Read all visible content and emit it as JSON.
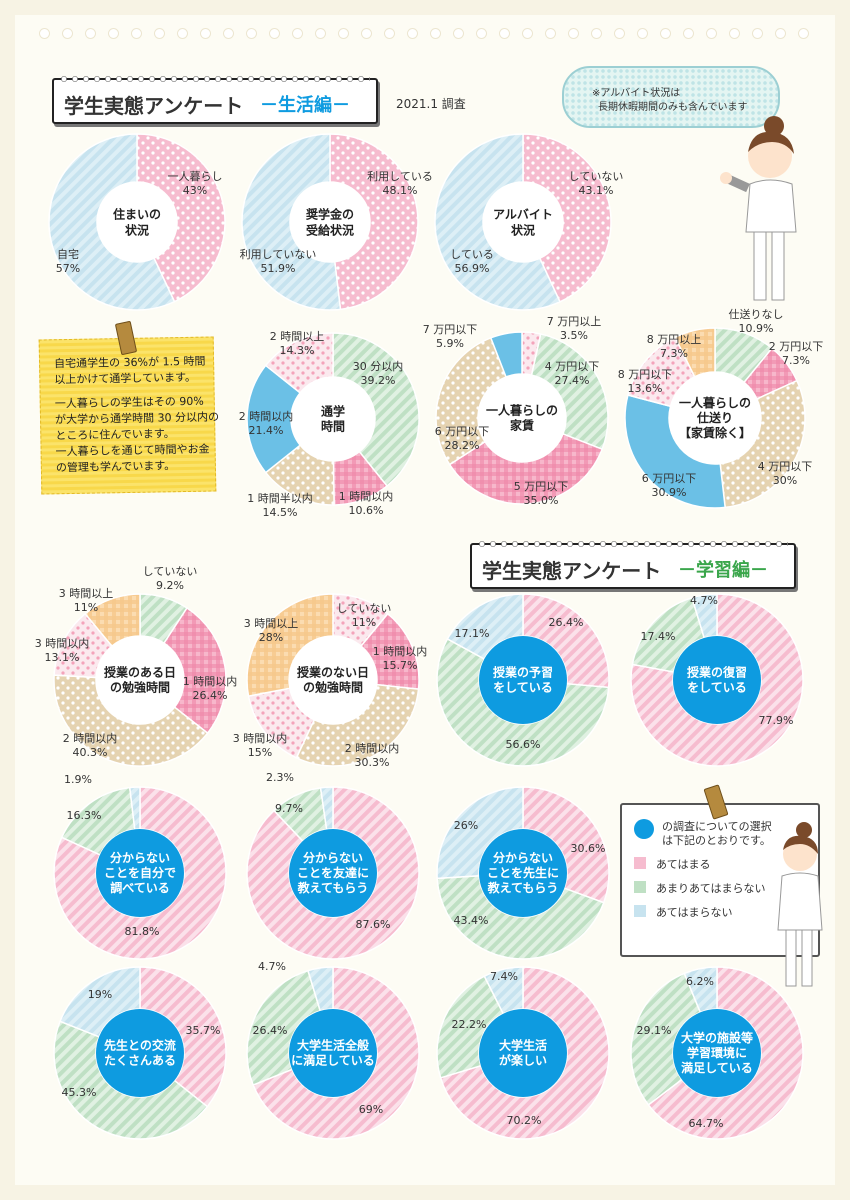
{
  "header_life": {
    "title": "学生実態アンケート",
    "subtitle": "－生活編－",
    "date": "2021.1 調査"
  },
  "header_study": {
    "title": "学生実態アンケート",
    "subtitle": "－学習編－"
  },
  "note": {
    "lines": [
      "自宅通学生の 36%が 1.5 時間",
      "以上かけて通学しています。",
      "一人暮らしの学生はその 90%",
      "が大学から通学時間 30 分以内の",
      "ところに住んでいます。",
      "一人暮らしを通じて時間やお金",
      "の管理も学んでいます。"
    ]
  },
  "bubble": {
    "lines": [
      "※アルバイト状況は",
      "長期休暇期間のみも含んでいます"
    ]
  },
  "legend": {
    "title_lines": [
      "の調査についての選択",
      "は下記のとおりです。"
    ],
    "items": [
      {
        "label": "あてはまる",
        "color": "#f6bccf"
      },
      {
        "label": "あまりあてはまらない",
        "color": "#bfe0c4"
      },
      {
        "label": "あてはまらない",
        "color": "#c7e3ef"
      }
    ]
  },
  "colors": {
    "pink": "#f6bccf",
    "pink_dots": "#f6bccf",
    "blue_stripe": "#c7e3ef",
    "green_stripe": "#bfe0c4",
    "green_dots": "#bfe0c4",
    "beige_dots": "#e5d3b1",
    "pink_check": "#ee87a9",
    "blue_solid": "#6bc0e6",
    "orange_check": "#f6c88c",
    "blue_center": "#0e9be0"
  },
  "chart_data": [
    {
      "type": "pie",
      "id": "c1",
      "center": [
        "住まいの",
        "状況"
      ],
      "slices": [
        {
          "label": [
            "一人暮らし",
            "43%"
          ],
          "value": 43
        },
        {
          "label": [
            "自宅",
            "57%"
          ],
          "value": 57
        }
      ]
    },
    {
      "type": "pie",
      "id": "c2",
      "center": [
        "奨学金の",
        "受給状況"
      ],
      "slices": [
        {
          "label": [
            "利用している",
            "48.1%"
          ],
          "value": 48.1
        },
        {
          "label": [
            "利用していない",
            "51.9%"
          ],
          "value": 51.9
        }
      ]
    },
    {
      "type": "pie",
      "id": "c3",
      "center": [
        "アルバイト",
        "状況"
      ],
      "slices": [
        {
          "label": [
            "していない",
            "43.1%"
          ],
          "value": 43.1
        },
        {
          "label": [
            "している",
            "56.9%"
          ],
          "value": 56.9
        }
      ]
    },
    {
      "type": "pie",
      "id": "c4",
      "center": [
        "通学",
        "時間"
      ],
      "slices": [
        {
          "label": [
            "30 分以内",
            "39.2%"
          ],
          "value": 39.2
        },
        {
          "label": [
            "1 時間以内",
            "10.6%"
          ],
          "value": 10.6
        },
        {
          "label": [
            "1 時間半以内",
            "14.5%"
          ],
          "value": 14.5
        },
        {
          "label": [
            "2 時間以内",
            "21.4%"
          ],
          "value": 21.4
        },
        {
          "label": [
            "2 時間以上",
            "14.3%"
          ],
          "value": 14.3
        }
      ]
    },
    {
      "type": "pie",
      "id": "c5",
      "center": [
        "一人暮らしの",
        "家賃"
      ],
      "slices": [
        {
          "label": [
            "7 万円以上",
            "3.5%"
          ],
          "value": 3.5
        },
        {
          "label": [
            "4 万円以下",
            "27.4%"
          ],
          "value": 27.4
        },
        {
          "label": [
            "5 万円以下",
            "35.0%"
          ],
          "value": 35.0
        },
        {
          "label": [
            "6 万円以下",
            "28.2%"
          ],
          "value": 28.2
        },
        {
          "label": [
            "7 万円以下",
            "5.9%"
          ],
          "value": 5.9
        }
      ]
    },
    {
      "type": "pie",
      "id": "c6",
      "center": [
        "一人暮らしの",
        "仕送り",
        "【家賃除く】"
      ],
      "slices": [
        {
          "label": [
            "仕送りなし",
            "10.9%"
          ],
          "value": 10.9
        },
        {
          "label": [
            "2 万円以下",
            "7.3%"
          ],
          "value": 7.3
        },
        {
          "label": [
            "4 万円以下",
            "30%"
          ],
          "value": 30
        },
        {
          "label": [
            "6 万円以下",
            "30.9%"
          ],
          "value": 30.9
        },
        {
          "label": [
            "8 万円以下",
            "13.6%"
          ],
          "value": 13.6
        },
        {
          "label": [
            "8 万円以上",
            "7.3%"
          ],
          "value": 7.3
        }
      ]
    },
    {
      "type": "pie",
      "id": "c7",
      "center": [
        "授業のある日",
        "の勉強時間"
      ],
      "slices": [
        {
          "label": [
            "していない",
            "9.2%"
          ],
          "value": 9.2
        },
        {
          "label": [
            "1 時間以内",
            "26.4%"
          ],
          "value": 26.4
        },
        {
          "label": [
            "2 時間以内",
            "40.3%"
          ],
          "value": 40.3
        },
        {
          "label": [
            "3 時間以内",
            "13.1%"
          ],
          "value": 13.1
        },
        {
          "label": [
            "3 時間以上",
            "11%"
          ],
          "value": 11
        }
      ]
    },
    {
      "type": "pie",
      "id": "c8",
      "center": [
        "授業のない日",
        "の勉強時間"
      ],
      "slices": [
        {
          "label": [
            "していない",
            "11%"
          ],
          "value": 11
        },
        {
          "label": [
            "1 時間以内",
            "15.7%"
          ],
          "value": 15.7
        },
        {
          "label": [
            "2 時間以内",
            "30.3%"
          ],
          "value": 30.3
        },
        {
          "label": [
            "3 時間以内",
            "15%"
          ],
          "value": 15
        },
        {
          "label": [
            "3 時間以上",
            "28%"
          ],
          "value": 28
        }
      ]
    },
    {
      "type": "pie",
      "id": "s1",
      "center": [
        "授業の予習",
        "をしている"
      ],
      "slices": [
        {
          "label": [
            "26.4%"
          ],
          "value": 26.4
        },
        {
          "label": [
            "56.6%"
          ],
          "value": 56.6
        },
        {
          "label": [
            "17.1%"
          ],
          "value": 17.1
        }
      ]
    },
    {
      "type": "pie",
      "id": "s2",
      "center": [
        "授業の復習",
        "をしている"
      ],
      "slices": [
        {
          "label": [
            "77.9%"
          ],
          "value": 77.9
        },
        {
          "label": [
            "17.4%"
          ],
          "value": 17.4
        },
        {
          "label": [
            "4.7%"
          ],
          "value": 4.7
        }
      ]
    },
    {
      "type": "pie",
      "id": "s3",
      "center": [
        "分からない",
        "ことを自分で",
        "調べている"
      ],
      "slices": [
        {
          "label": [
            "81.8%"
          ],
          "value": 81.8
        },
        {
          "label": [
            "16.3%"
          ],
          "value": 16.3
        },
        {
          "label": [
            "1.9%"
          ],
          "value": 1.9
        }
      ]
    },
    {
      "type": "pie",
      "id": "s4",
      "center": [
        "分からない",
        "ことを友達に",
        "教えてもらう"
      ],
      "slices": [
        {
          "label": [
            "87.6%"
          ],
          "value": 87.6
        },
        {
          "label": [
            "9.7%"
          ],
          "value": 9.7
        },
        {
          "label": [
            "2.3%"
          ],
          "value": 2.3
        }
      ]
    },
    {
      "type": "pie",
      "id": "s5",
      "center": [
        "分からない",
        "ことを先生に",
        "教えてもらう"
      ],
      "slices": [
        {
          "label": [
            "30.6%"
          ],
          "value": 30.6
        },
        {
          "label": [
            "43.4%"
          ],
          "value": 43.4
        },
        {
          "label": [
            "26%"
          ],
          "value": 26
        }
      ]
    },
    {
      "type": "pie",
      "id": "s6",
      "center": [
        "先生との交流",
        "たくさんある"
      ],
      "slices": [
        {
          "label": [
            "35.7%"
          ],
          "value": 35.7
        },
        {
          "label": [
            "45.3%"
          ],
          "value": 45.3
        },
        {
          "label": [
            "19%"
          ],
          "value": 19
        }
      ]
    },
    {
      "type": "pie",
      "id": "s7",
      "center": [
        "大学生活全般",
        "に満足している"
      ],
      "slices": [
        {
          "label": [
            "69%"
          ],
          "value": 69
        },
        {
          "label": [
            "26.4%"
          ],
          "value": 26.4
        },
        {
          "label": [
            "4.7%"
          ],
          "value": 4.7
        }
      ]
    },
    {
      "type": "pie",
      "id": "s8",
      "center": [
        "大学生活",
        "が楽しい"
      ],
      "slices": [
        {
          "label": [
            "70.2%"
          ],
          "value": 70.2
        },
        {
          "label": [
            "22.2%"
          ],
          "value": 22.2
        },
        {
          "label": [
            "7.4%"
          ],
          "value": 7.4
        }
      ]
    },
    {
      "type": "pie",
      "id": "s9",
      "center": [
        "大学の施設等",
        "学習環境に",
        "満足している"
      ],
      "slices": [
        {
          "label": [
            "64.7%"
          ],
          "value": 64.7
        },
        {
          "label": [
            "29.1%"
          ],
          "value": 29.1
        },
        {
          "label": [
            "6.2%"
          ],
          "value": 6.2
        }
      ]
    }
  ]
}
